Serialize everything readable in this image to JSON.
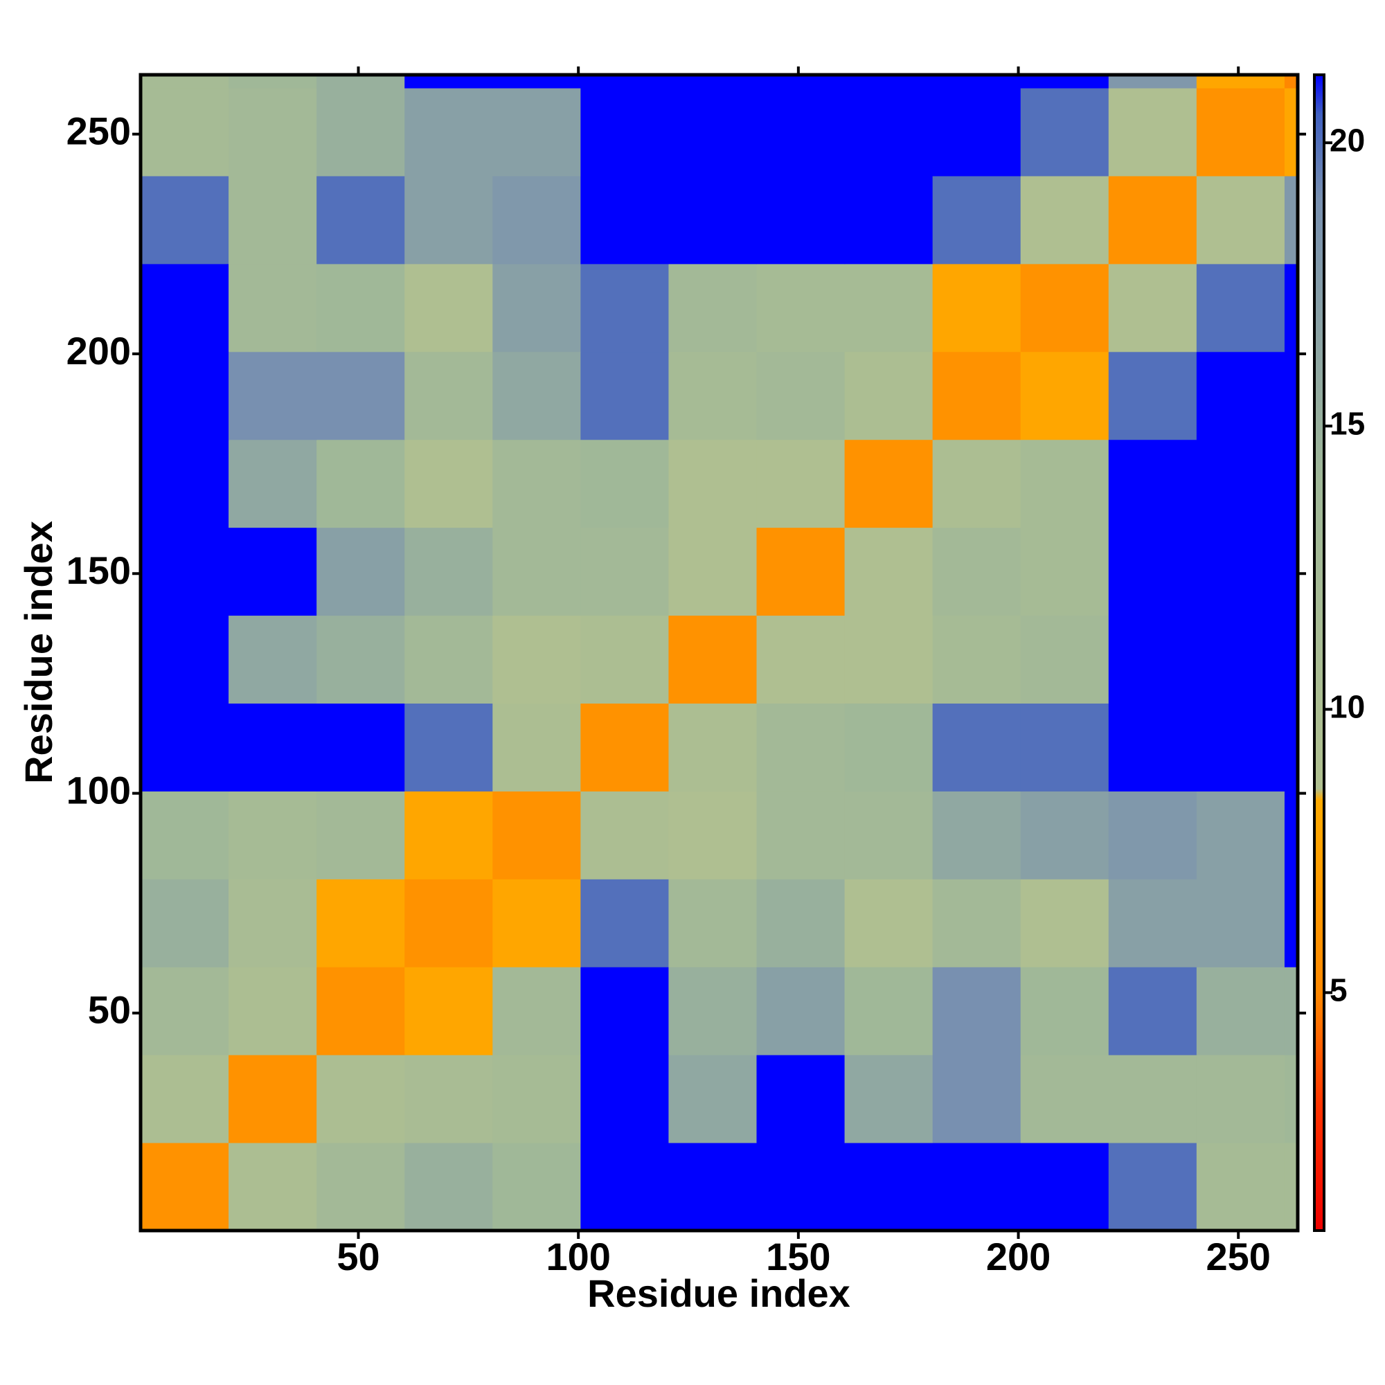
{
  "chart_data": {
    "type": "heatmap",
    "x_label": "Residue index",
    "y_label": "Residue index",
    "xbins": [
      0.5,
      20.5,
      40.5,
      60.5,
      80.5,
      100.5,
      120.5,
      140.5,
      160.5,
      180.5,
      200.5,
      220.5,
      240.5,
      260.5,
      263.5
    ],
    "ybins": [
      0.5,
      20.5,
      40.5,
      60.5,
      80.5,
      100.5,
      120.5,
      140.5,
      160.5,
      180.5,
      200.5,
      220.5,
      240.5,
      260.5,
      263.5
    ],
    "xlim": [
      0.5,
      263.5
    ],
    "ylim": [
      0.5,
      263.5
    ],
    "xticks": [
      50,
      100,
      150,
      200,
      250
    ],
    "yticks": [
      50,
      100,
      150,
      200,
      250
    ],
    "zlim": [
      0.8,
      21.2
    ],
    "zticks": [
      5,
      10,
      15,
      20
    ],
    "colorscale": [
      {
        "value": 0.8,
        "color": "#ee0000"
      },
      {
        "value": 3,
        "color": "#ff3300"
      },
      {
        "value": 5,
        "color": "#ff8800"
      },
      {
        "value": 8.4,
        "color": "#ffaa00"
      },
      {
        "value": 8.6,
        "color": "#b0c090"
      },
      {
        "value": 14,
        "color": "#a0b898"
      },
      {
        "value": 19,
        "color": "#7890b0"
      },
      {
        "value": 20.5,
        "color": "#4060c0"
      },
      {
        "value": 21.2,
        "color": "#0000ff"
      }
    ],
    "z": [
      [
        6,
        10,
        13,
        15,
        14,
        21.2,
        21.2,
        21.2,
        21.2,
        21.2,
        21.2,
        20,
        12,
        12
      ],
      [
        10,
        6,
        10,
        11,
        12,
        21.2,
        16,
        21.2,
        16,
        19,
        13,
        13,
        13,
        14
      ],
      [
        13,
        10,
        6,
        8,
        13,
        21.2,
        15,
        17,
        14,
        19,
        14,
        20,
        15,
        15
      ],
      [
        15,
        11,
        8,
        6,
        8,
        20,
        13,
        15,
        9,
        13,
        9,
        17,
        17,
        21.2
      ],
      [
        14,
        12,
        13,
        8,
        6,
        10,
        9,
        13,
        13,
        16,
        17,
        18,
        17,
        21.2
      ],
      [
        21.2,
        21.2,
        21.2,
        20,
        10,
        6,
        10,
        13,
        14,
        20,
        20,
        21.2,
        21.2,
        21.2
      ],
      [
        21.2,
        16,
        15,
        13,
        9,
        10,
        6,
        9,
        9,
        12,
        13,
        21.2,
        21.2,
        21.2
      ],
      [
        21.2,
        21.2,
        17,
        15,
        13,
        13,
        9,
        6,
        9,
        13,
        12,
        21.2,
        21.2,
        21.2
      ],
      [
        21.2,
        16,
        14,
        9,
        13,
        14,
        9,
        9,
        6,
        10,
        12,
        21.2,
        21.2,
        21.2
      ],
      [
        21.2,
        19,
        19,
        13,
        16,
        20,
        12,
        13,
        10,
        6,
        8,
        20,
        21.2,
        21.2
      ],
      [
        21.2,
        13,
        14,
        9,
        17,
        20,
        13,
        12,
        12,
        8,
        6,
        9,
        20,
        21.2
      ],
      [
        20,
        13,
        20,
        17,
        18,
        21.2,
        21.2,
        21.2,
        21.2,
        20,
        9,
        6,
        9,
        18
      ],
      [
        12,
        13,
        15,
        17,
        17,
        21.2,
        21.2,
        21.2,
        21.2,
        21.2,
        20,
        9,
        6,
        8
      ],
      [
        12,
        14,
        15,
        21.2,
        21.2,
        21.2,
        21.2,
        21.2,
        21.2,
        21.2,
        21.2,
        18,
        8,
        5
      ]
    ]
  }
}
